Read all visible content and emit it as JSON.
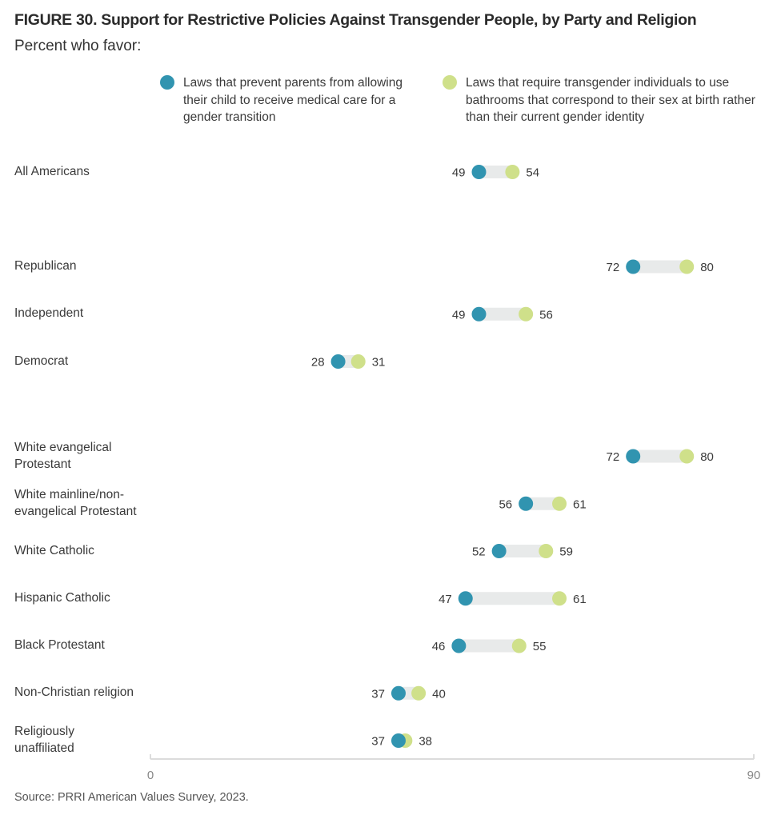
{
  "title": "FIGURE 30.  Support for Restrictive Policies Against Transgender People, by Party and Religion",
  "subtitle": "Percent who favor:",
  "source": "Source: PRRI American Values Survey, 2023.",
  "colors": {
    "series1": "#3194b0",
    "series2": "#cfe08a",
    "bar": "#e8eaea",
    "axis": "#dcdcdc"
  },
  "chart_data": {
    "type": "dumbbell",
    "title": "FIGURE 30.  Support for Restrictive Policies Against Transgender People, by Party and Religion",
    "subtitle": "Percent who favor:",
    "xlim": [
      0,
      90
    ],
    "x_ticks": [
      0,
      90
    ],
    "x_tick_labels": [
      "0",
      "90"
    ],
    "grid": false,
    "legend_position": "top",
    "series": [
      {
        "name": "Laws that prevent parents from allowing their child to receive medical care for a gender transition",
        "color": "#3194b0",
        "values": [
          49,
          72,
          49,
          28,
          72,
          56,
          52,
          47,
          46,
          37,
          37
        ]
      },
      {
        "name": "Laws that require transgender individuals to use bathrooms that correspond to their sex at birth rather than their current gender identity",
        "color": "#cfe08a",
        "values": [
          54,
          80,
          56,
          31,
          80,
          61,
          59,
          61,
          55,
          40,
          38
        ]
      }
    ],
    "categories": [
      "All Americans",
      "Republican",
      "Independent",
      "Democrat",
      "White evangelical Protestant",
      "White mainline/non-evangelical Protestant",
      "White Catholic",
      "Hispanic Catholic",
      "Black Protestant",
      "Non-Christian religion",
      "Religiously unaffiliated"
    ],
    "category_groups": [
      "overall",
      "party",
      "party",
      "party",
      "religion",
      "religion",
      "religion",
      "religion",
      "religion",
      "religion",
      "religion"
    ],
    "category_labels_display": [
      [
        "All Americans"
      ],
      [
        "Republican"
      ],
      [
        "Independent"
      ],
      [
        "Democrat"
      ],
      [
        "White evangelical",
        "Protestant"
      ],
      [
        "White mainline/non-",
        "evangelical Protestant"
      ],
      [
        "White Catholic"
      ],
      [
        "Hispanic Catholic"
      ],
      [
        "Black Protestant"
      ],
      [
        "Non-Christian religion"
      ],
      [
        "Religiously",
        "unaffiliated"
      ]
    ]
  },
  "legend": [
    {
      "label": "Laws that prevent parents from allowing their child to receive medical care for a gender transition"
    },
    {
      "label": "Laws that require transgender individuals to use bathrooms that correspond to their sex at birth rather than their current gender identity"
    }
  ]
}
